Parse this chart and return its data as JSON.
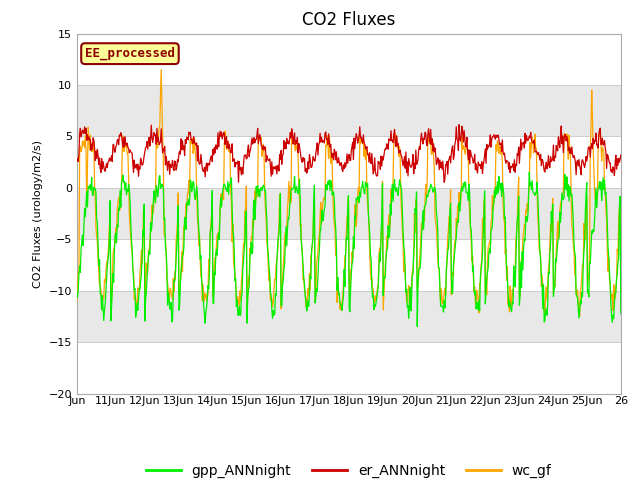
{
  "title": "CO2 Fluxes",
  "ylabel": "CO2 Fluxes (urology/m2/s)",
  "ylim": [
    -20,
    15
  ],
  "yticks": [
    -20,
    -15,
    -10,
    -5,
    0,
    5,
    10,
    15
  ],
  "xtick_labels": [
    "Jun",
    "11Jun",
    "12Jun",
    "13Jun",
    "14Jun",
    "15Jun",
    "16Jun",
    "17Jun",
    "18Jun",
    "19Jun",
    "20Jun",
    "21Jun",
    "22Jun",
    "23Jun",
    "24Jun",
    "25Jun",
    "26"
  ],
  "line_colors": {
    "gpp": "#00ee00",
    "er": "#cc0000",
    "wc": "#ffa500"
  },
  "legend_labels": [
    "gpp_ANNnight",
    "er_ANNnight",
    "wc_gf"
  ],
  "annotation_text": "EE_processed",
  "annotation_bg": "#ffff99",
  "annotation_edge": "#8b0000",
  "plot_bg": "#e8e8e8",
  "band_colors": [
    "#ffffff",
    "#e8e8e8"
  ],
  "title_fontsize": 12,
  "axis_fontsize": 8,
  "legend_fontsize": 10
}
